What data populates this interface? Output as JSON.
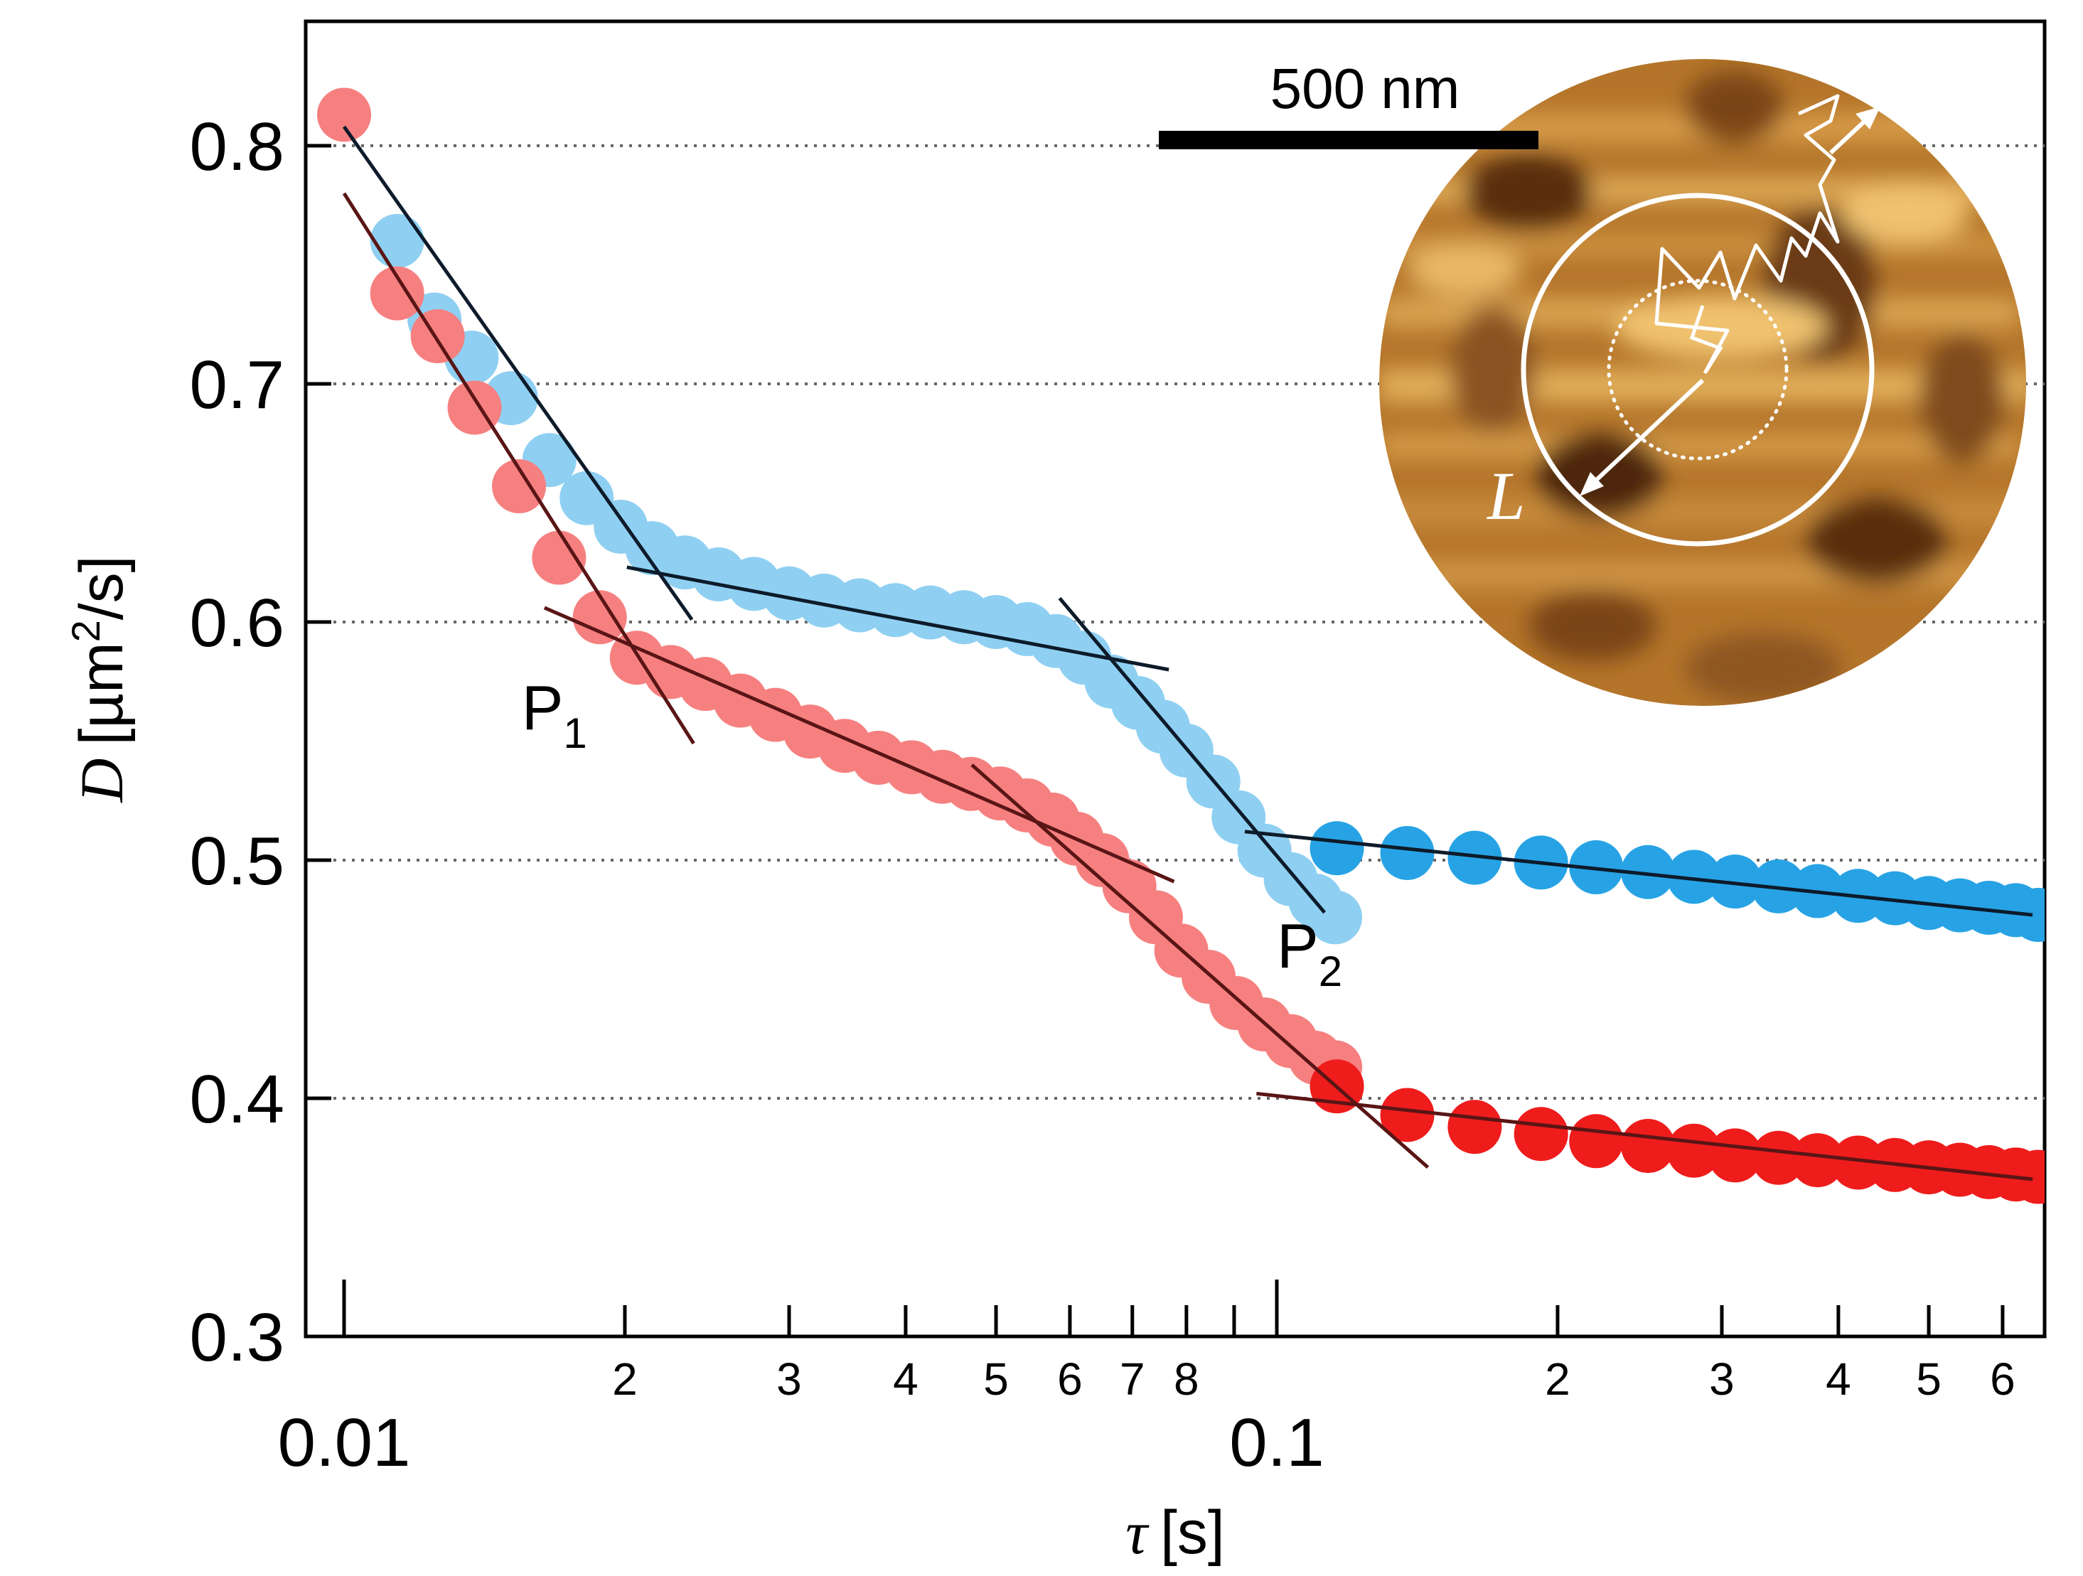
{
  "chart_data": {
    "type": "scatter",
    "x_scale": "log",
    "xlabel_symbol": "τ",
    "xlabel_unit": "[s]",
    "ylabel_symbol": "D",
    "ylabel_unit_pre": "[µm",
    "ylabel_unit_exp": "2",
    "ylabel_unit_post": "/s]",
    "xlim": [
      0.0095,
      0.68
    ],
    "ylim": [
      0.3,
      0.85
    ],
    "y_ticks": [
      0.3,
      0.4,
      0.5,
      0.6,
      0.7,
      0.8
    ],
    "y_tick_labels": [
      "0.3",
      "0.4",
      "0.5",
      "0.6",
      "0.7",
      "0.8"
    ],
    "y_gridlines": [
      0.4,
      0.5,
      0.6,
      0.7,
      0.8
    ],
    "x_major_ticks": [
      {
        "value": 0.01,
        "label": "0.01"
      },
      {
        "value": 0.1,
        "label": "0.1"
      }
    ],
    "x_minor_ticks": [
      {
        "value": 0.02,
        "label": "2"
      },
      {
        "value": 0.03,
        "label": "3"
      },
      {
        "value": 0.04,
        "label": "4"
      },
      {
        "value": 0.05,
        "label": "5"
      },
      {
        "value": 0.06,
        "label": "6"
      },
      {
        "value": 0.07,
        "label": "7"
      },
      {
        "value": 0.08,
        "label": "8"
      },
      {
        "value": 0.09,
        "label": ""
      },
      {
        "value": 0.2,
        "label": "2"
      },
      {
        "value": 0.3,
        "label": "3"
      },
      {
        "value": 0.4,
        "label": "4"
      },
      {
        "value": 0.5,
        "label": "5"
      },
      {
        "value": 0.6,
        "label": "6"
      }
    ],
    "series": [
      {
        "name": "blue",
        "segments": [
          {
            "color": "#8fd0f2",
            "points": [
              [
                0.0114,
                0.76
              ],
              [
                0.0125,
                0.727
              ],
              [
                0.0137,
                0.711
              ],
              [
                0.0151,
                0.694
              ],
              [
                0.0166,
                0.668
              ],
              [
                0.0182,
                0.652
              ],
              [
                0.0198,
                0.64
              ],
              [
                0.0214,
                0.631
              ],
              [
                0.0232,
                0.625
              ],
              [
                0.0252,
                0.62
              ],
              [
                0.0275,
                0.616
              ],
              [
                0.03,
                0.612
              ],
              [
                0.0327,
                0.609
              ],
              [
                0.0357,
                0.607
              ],
              [
                0.039,
                0.605
              ],
              [
                0.0425,
                0.604
              ],
              [
                0.0462,
                0.602
              ],
              [
                0.05,
                0.6
              ],
              [
                0.054,
                0.597
              ],
              [
                0.058,
                0.592
              ],
              [
                0.0622,
                0.585
              ],
              [
                0.0665,
                0.575
              ],
              [
                0.071,
                0.566
              ],
              [
                0.0755,
                0.556
              ],
              [
                0.08,
                0.546
              ],
              [
                0.0855,
                0.533
              ],
              [
                0.091,
                0.518
              ],
              [
                0.097,
                0.504
              ],
              [
                0.1035,
                0.492
              ],
              [
                0.11,
                0.483
              ],
              [
                0.1155,
                0.476
              ]
            ]
          },
          {
            "color": "#27a3e5",
            "points": [
              [
                0.116,
                0.505
              ],
              [
                0.138,
                0.503
              ],
              [
                0.163,
                0.501
              ],
              [
                0.192,
                0.499
              ],
              [
                0.22,
                0.497
              ],
              [
                0.25,
                0.495
              ],
              [
                0.28,
                0.493
              ],
              [
                0.31,
                0.491
              ],
              [
                0.345,
                0.489
              ],
              [
                0.38,
                0.487
              ],
              [
                0.42,
                0.485
              ],
              [
                0.46,
                0.484
              ],
              [
                0.5,
                0.482
              ],
              [
                0.54,
                0.481
              ],
              [
                0.58,
                0.48
              ],
              [
                0.62,
                0.479
              ],
              [
                0.655,
                0.477
              ]
            ]
          }
        ]
      },
      {
        "name": "red",
        "segments": [
          {
            "color": "#f68080",
            "points": [
              [
                0.01,
                0.813
              ],
              [
                0.0114,
                0.738
              ],
              [
                0.0126,
                0.72
              ],
              [
                0.0138,
                0.69
              ],
              [
                0.0154,
                0.657
              ],
              [
                0.017,
                0.627
              ],
              [
                0.0188,
                0.602
              ],
              [
                0.0206,
                0.585
              ],
              [
                0.0224,
                0.579
              ],
              [
                0.0244,
                0.574
              ],
              [
                0.0266,
                0.567
              ],
              [
                0.029,
                0.561
              ],
              [
                0.0316,
                0.554
              ],
              [
                0.0344,
                0.548
              ],
              [
                0.0374,
                0.543
              ],
              [
                0.0406,
                0.539
              ],
              [
                0.0438,
                0.535
              ],
              [
                0.047,
                0.532
              ],
              [
                0.0505,
                0.528
              ],
              [
                0.054,
                0.523
              ],
              [
                0.0575,
                0.517
              ],
              [
                0.061,
                0.509
              ],
              [
                0.065,
                0.5
              ],
              [
                0.0695,
                0.489
              ],
              [
                0.0742,
                0.476
              ],
              [
                0.079,
                0.462
              ],
              [
                0.0845,
                0.451
              ],
              [
                0.0905,
                0.44
              ],
              [
                0.097,
                0.431
              ],
              [
                0.1035,
                0.424
              ],
              [
                0.11,
                0.417
              ],
              [
                0.1155,
                0.413
              ]
            ]
          },
          {
            "color": "#ef1c1c",
            "points": [
              [
                0.116,
                0.405
              ],
              [
                0.138,
                0.393
              ],
              [
                0.163,
                0.388
              ],
              [
                0.192,
                0.385
              ],
              [
                0.22,
                0.382
              ],
              [
                0.25,
                0.38
              ],
              [
                0.28,
                0.378
              ],
              [
                0.31,
                0.376
              ],
              [
                0.345,
                0.375
              ],
              [
                0.38,
                0.374
              ],
              [
                0.42,
                0.373
              ],
              [
                0.46,
                0.372
              ],
              [
                0.5,
                0.371
              ],
              [
                0.54,
                0.37
              ],
              [
                0.58,
                0.369
              ],
              [
                0.62,
                0.368
              ],
              [
                0.655,
                0.367
              ]
            ]
          }
        ]
      }
    ],
    "fit_lines": [
      {
        "color": "#0d1b2a",
        "x": [
          0.01,
          0.0236
        ],
        "y": [
          0.808,
          0.601
        ]
      },
      {
        "color": "#0d1b2a",
        "x": [
          0.0201,
          0.0766
        ],
        "y": [
          0.623,
          0.58
        ]
      },
      {
        "color": "#0d1b2a",
        "x": [
          0.0585,
          0.1125
        ],
        "y": [
          0.61,
          0.478
        ]
      },
      {
        "color": "#0d1b2a",
        "x": [
          0.0924,
          0.646
        ],
        "y": [
          0.512,
          0.477
        ]
      },
      {
        "color": "#5a1515",
        "x": [
          0.01,
          0.0237
        ],
        "y": [
          0.78,
          0.549
        ]
      },
      {
        "color": "#5a1515",
        "x": [
          0.0164,
          0.0776
        ],
        "y": [
          0.606,
          0.491
        ]
      },
      {
        "color": "#5a1515",
        "x": [
          0.0471,
          0.1452
        ],
        "y": [
          0.54,
          0.371
        ]
      },
      {
        "color": "#5a1515",
        "x": [
          0.0951,
          0.646
        ],
        "y": [
          0.402,
          0.366
        ]
      }
    ],
    "annotations": [
      {
        "label": "P",
        "sub": "1",
        "x": 0.0155,
        "y": 0.555
      },
      {
        "label": "P",
        "sub": "2",
        "x": 0.1,
        "y": 0.455
      }
    ],
    "inset": {
      "scale_bar_label": "500 nm",
      "arrow_label": "L"
    }
  }
}
